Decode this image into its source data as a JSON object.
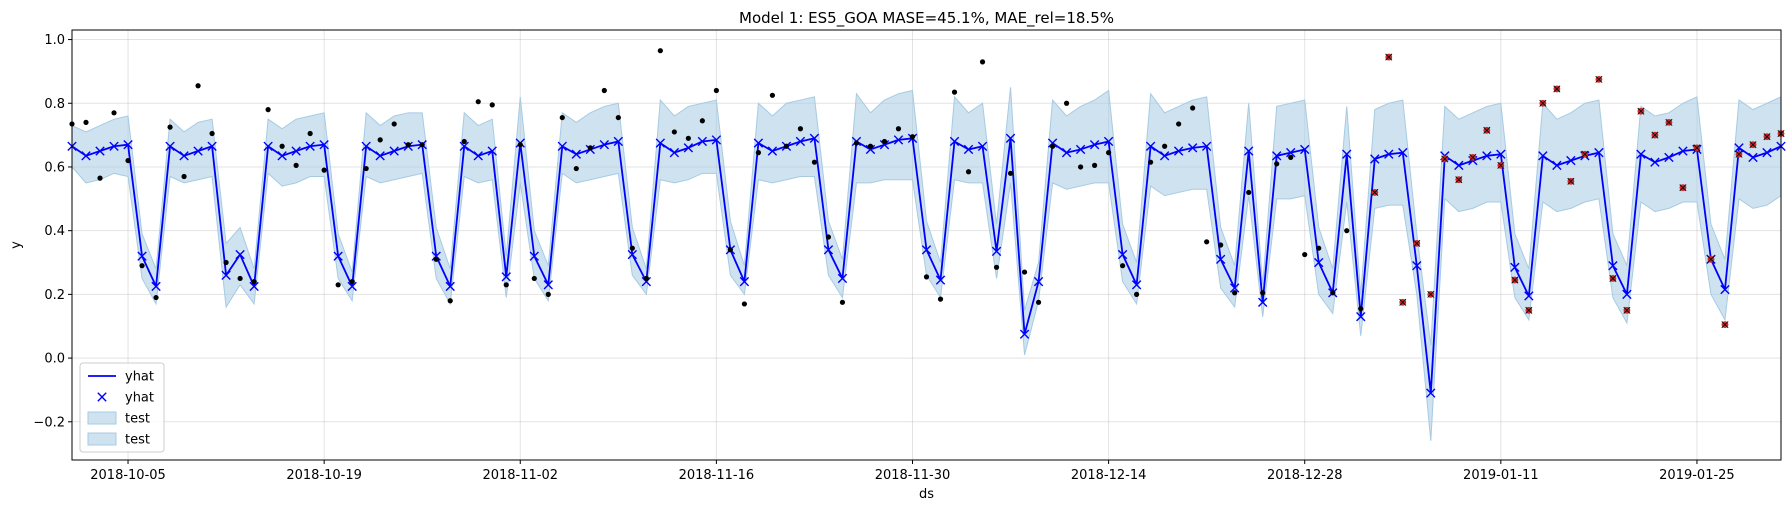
{
  "chart_data": {
    "type": "line",
    "title": "Model 1: ES5_GOA MASE=45.1%, MAE_rel=18.5%",
    "xlabel": "ds",
    "ylabel": "y",
    "x_start": "2018-10-01",
    "xlim": [
      "2018-10-01",
      "2019-01-31"
    ],
    "ylim": [
      -0.32,
      1.03
    ],
    "yticks": [
      -0.2,
      0.0,
      0.2,
      0.4,
      0.6,
      0.8,
      1.0
    ],
    "ytick_labels": [
      "−0.2",
      "0.0",
      "0.2",
      "0.4",
      "0.6",
      "0.8",
      "1.0"
    ],
    "xticks": [
      "2018-10-05",
      "2018-10-19",
      "2018-11-02",
      "2018-11-16",
      "2018-11-30",
      "2018-12-14",
      "2018-12-28",
      "2019-01-11",
      "2019-01-25"
    ],
    "grid": true,
    "legend_position": "lower-left",
    "legend": [
      {
        "label": "yhat",
        "kind": "line"
      },
      {
        "label": "yhat",
        "kind": "x-marker"
      },
      {
        "label": "test",
        "kind": "band"
      },
      {
        "label": "test",
        "kind": "band"
      }
    ],
    "colors": {
      "forecast": "#0000ff",
      "band": "#a6cbe3",
      "observed": "#000000",
      "test_points": "#d62728"
    },
    "train_end_day": 93,
    "yhat": [
      0.665,
      0.635,
      0.65,
      0.665,
      0.67,
      0.32,
      0.225,
      0.665,
      0.635,
      0.65,
      0.665,
      0.26,
      0.325,
      0.225,
      0.665,
      0.635,
      0.65,
      0.665,
      0.67,
      0.32,
      0.225,
      0.665,
      0.635,
      0.65,
      0.665,
      0.67,
      0.32,
      0.225,
      0.665,
      0.635,
      0.65,
      0.255,
      0.675,
      0.32,
      0.23,
      0.665,
      0.64,
      0.655,
      0.67,
      0.68,
      0.325,
      0.24,
      0.675,
      0.645,
      0.66,
      0.68,
      0.685,
      0.34,
      0.24,
      0.675,
      0.65,
      0.665,
      0.68,
      0.69,
      0.34,
      0.25,
      0.68,
      0.655,
      0.67,
      0.685,
      0.69,
      0.34,
      0.245,
      0.68,
      0.655,
      0.665,
      0.335,
      0.69,
      0.075,
      0.24,
      0.675,
      0.645,
      0.655,
      0.67,
      0.68,
      0.325,
      0.23,
      0.665,
      0.635,
      0.65,
      0.66,
      0.665,
      0.31,
      0.22,
      0.65,
      0.175,
      0.635,
      0.645,
      0.655,
      0.3,
      0.205,
      0.64,
      0.13,
      0.625,
      0.64,
      0.645,
      0.29,
      -0.11,
      0.635,
      0.605,
      0.62,
      0.635,
      0.64,
      0.285,
      0.195,
      0.635,
      0.605,
      0.62,
      0.635,
      0.645,
      0.29,
      0.2,
      0.64,
      0.615,
      0.63,
      0.65,
      0.655,
      0.31,
      0.215,
      0.66,
      0.63,
      0.645,
      0.665
    ],
    "band_lower": [
      0.6,
      0.55,
      0.56,
      0.58,
      0.57,
      0.25,
      0.17,
      0.57,
      0.55,
      0.56,
      0.57,
      0.16,
      0.23,
      0.17,
      0.58,
      0.54,
      0.55,
      0.57,
      0.57,
      0.25,
      0.18,
      0.57,
      0.55,
      0.56,
      0.57,
      0.58,
      0.25,
      0.17,
      0.57,
      0.55,
      0.56,
      0.19,
      0.55,
      0.25,
      0.18,
      0.58,
      0.55,
      0.56,
      0.57,
      0.58,
      0.26,
      0.2,
      0.56,
      0.55,
      0.56,
      0.58,
      0.58,
      0.26,
      0.2,
      0.56,
      0.55,
      0.56,
      0.57,
      0.57,
      0.26,
      0.19,
      0.55,
      0.55,
      0.56,
      0.56,
      0.56,
      0.26,
      0.19,
      0.56,
      0.55,
      0.55,
      0.25,
      0.55,
      0.01,
      0.18,
      0.55,
      0.53,
      0.54,
      0.55,
      0.55,
      0.24,
      0.17,
      0.54,
      0.51,
      0.52,
      0.53,
      0.53,
      0.22,
      0.16,
      0.51,
      0.13,
      0.5,
      0.5,
      0.51,
      0.2,
      0.14,
      0.49,
      0.07,
      0.47,
      0.48,
      0.48,
      0.2,
      -0.26,
      0.5,
      0.46,
      0.47,
      0.49,
      0.49,
      0.19,
      0.12,
      0.49,
      0.46,
      0.47,
      0.49,
      0.5,
      0.19,
      0.11,
      0.49,
      0.46,
      0.47,
      0.49,
      0.49,
      0.2,
      0.12,
      0.5,
      0.47,
      0.48,
      0.51
    ],
    "band_upper": [
      0.73,
      0.71,
      0.73,
      0.75,
      0.76,
      0.39,
      0.28,
      0.75,
      0.71,
      0.74,
      0.75,
      0.36,
      0.41,
      0.28,
      0.75,
      0.72,
      0.75,
      0.76,
      0.77,
      0.39,
      0.27,
      0.77,
      0.73,
      0.76,
      0.77,
      0.77,
      0.41,
      0.28,
      0.77,
      0.73,
      0.75,
      0.32,
      0.82,
      0.4,
      0.29,
      0.77,
      0.74,
      0.77,
      0.79,
      0.8,
      0.41,
      0.28,
      0.81,
      0.76,
      0.79,
      0.8,
      0.81,
      0.43,
      0.29,
      0.8,
      0.76,
      0.8,
      0.81,
      0.82,
      0.43,
      0.31,
      0.83,
      0.77,
      0.81,
      0.83,
      0.84,
      0.43,
      0.3,
      0.82,
      0.77,
      0.8,
      0.42,
      0.85,
      0.15,
      0.3,
      0.81,
      0.76,
      0.79,
      0.81,
      0.84,
      0.42,
      0.3,
      0.83,
      0.77,
      0.79,
      0.81,
      0.82,
      0.41,
      0.29,
      0.8,
      0.23,
      0.79,
      0.8,
      0.81,
      0.41,
      0.28,
      0.79,
      0.2,
      0.78,
      0.8,
      0.81,
      0.39,
      0.04,
      0.79,
      0.75,
      0.77,
      0.79,
      0.8,
      0.39,
      0.28,
      0.8,
      0.75,
      0.77,
      0.8,
      0.81,
      0.39,
      0.29,
      0.79,
      0.76,
      0.77,
      0.8,
      0.82,
      0.42,
      0.31,
      0.81,
      0.78,
      0.8,
      0.82
    ],
    "observed": [
      [
        0,
        0.735
      ],
      [
        1,
        0.74
      ],
      [
        2,
        0.565
      ],
      [
        3,
        0.77
      ],
      [
        4,
        0.62
      ],
      [
        5,
        0.29
      ],
      [
        6,
        0.19
      ],
      [
        7,
        0.725
      ],
      [
        8,
        0.57
      ],
      [
        9,
        0.855
      ],
      [
        10,
        0.705
      ],
      [
        11,
        0.3
      ],
      [
        12,
        0.25
      ],
      [
        13,
        0.24
      ],
      [
        14,
        0.78
      ],
      [
        15,
        0.665
      ],
      [
        16,
        0.605
      ],
      [
        17,
        0.705
      ],
      [
        18,
        0.59
      ],
      [
        19,
        0.23
      ],
      [
        20,
        0.24
      ],
      [
        21,
        0.595
      ],
      [
        22,
        0.685
      ],
      [
        23,
        0.735
      ],
      [
        24,
        0.67
      ],
      [
        25,
        0.67
      ],
      [
        26,
        0.31
      ],
      [
        27,
        0.18
      ],
      [
        28,
        0.68
      ],
      [
        29,
        0.805
      ],
      [
        30,
        0.795
      ],
      [
        31,
        0.23
      ],
      [
        32,
        0.67
      ],
      [
        33,
        0.25
      ],
      [
        34,
        0.2
      ],
      [
        35,
        0.755
      ],
      [
        36,
        0.595
      ],
      [
        37,
        0.66
      ],
      [
        38,
        0.84
      ],
      [
        39,
        0.755
      ],
      [
        40,
        0.345
      ],
      [
        41,
        0.25
      ],
      [
        42,
        0.965
      ],
      [
        43,
        0.71
      ],
      [
        44,
        0.69
      ],
      [
        45,
        0.745
      ],
      [
        46,
        0.84
      ],
      [
        47,
        0.34
      ],
      [
        48,
        0.17
      ],
      [
        49,
        0.645
      ],
      [
        50,
        0.825
      ],
      [
        51,
        0.665
      ],
      [
        52,
        0.72
      ],
      [
        53,
        0.615
      ],
      [
        54,
        0.38
      ],
      [
        55,
        0.175
      ],
      [
        56,
        0.675
      ],
      [
        57,
        0.665
      ],
      [
        58,
        0.68
      ],
      [
        59,
        0.72
      ],
      [
        60,
        0.695
      ],
      [
        61,
        0.255
      ],
      [
        62,
        0.185
      ],
      [
        63,
        0.835
      ],
      [
        64,
        0.585
      ],
      [
        65,
        0.93
      ],
      [
        66,
        0.285
      ],
      [
        67,
        0.58
      ],
      [
        68,
        0.27
      ],
      [
        69,
        0.175
      ],
      [
        70,
        0.665
      ],
      [
        71,
        0.8
      ],
      [
        72,
        0.6
      ],
      [
        73,
        0.605
      ],
      [
        74,
        0.645
      ],
      [
        75,
        0.29
      ],
      [
        76,
        0.2
      ],
      [
        77,
        0.615
      ],
      [
        78,
        0.665
      ],
      [
        79,
        0.735
      ],
      [
        80,
        0.785
      ],
      [
        81,
        0.365
      ],
      [
        82,
        0.355
      ],
      [
        83,
        0.205
      ],
      [
        84,
        0.52
      ],
      [
        85,
        0.205
      ],
      [
        86,
        0.61
      ],
      [
        87,
        0.63
      ],
      [
        88,
        0.325
      ],
      [
        89,
        0.345
      ],
      [
        90,
        0.205
      ],
      [
        91,
        0.4
      ],
      [
        92,
        0.155
      ]
    ],
    "test_points": [
      [
        93,
        0.52
      ],
      [
        94,
        0.945
      ],
      [
        95,
        0.175
      ],
      [
        96,
        0.36
      ],
      [
        97,
        0.2
      ],
      [
        98,
        0.625
      ],
      [
        99,
        0.56
      ],
      [
        100,
        0.63
      ],
      [
        101,
        0.715
      ],
      [
        102,
        0.605
      ],
      [
        103,
        0.245
      ],
      [
        104,
        0.15
      ],
      [
        105,
        0.8
      ],
      [
        106,
        0.845
      ],
      [
        107,
        0.555
      ],
      [
        108,
        0.64
      ],
      [
        109,
        0.875
      ],
      [
        110,
        0.25
      ],
      [
        111,
        0.15
      ],
      [
        112,
        0.775
      ],
      [
        113,
        0.7
      ],
      [
        114,
        0.74
      ],
      [
        115,
        0.535
      ],
      [
        116,
        0.66
      ],
      [
        117,
        0.31
      ],
      [
        118,
        0.105
      ],
      [
        119,
        0.64
      ],
      [
        120,
        0.67
      ],
      [
        121,
        0.695
      ],
      [
        122,
        0.705
      ]
    ]
  }
}
